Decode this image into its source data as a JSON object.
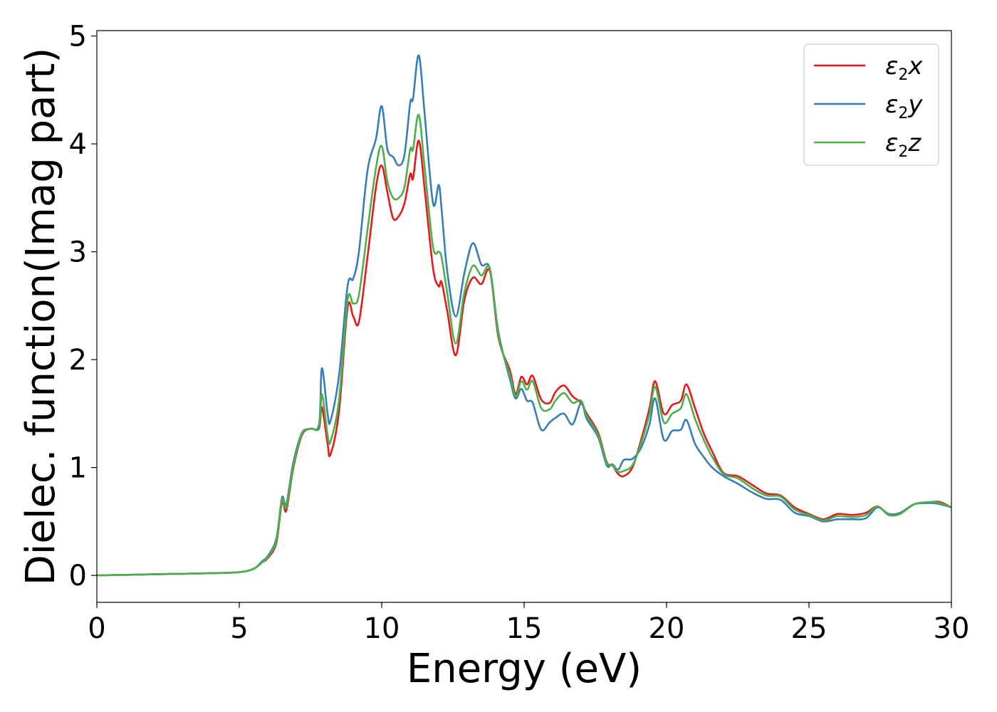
{
  "chart_data": {
    "type": "line",
    "xlabel": "Energy (eV)",
    "ylabel": "Dielec. function(Imag part)",
    "xlim": [
      0,
      30
    ],
    "ylim": [
      -0.25,
      5.05
    ],
    "xticks": [
      0,
      5,
      10,
      15,
      20,
      25,
      30
    ],
    "yticks": [
      0,
      1,
      2,
      3,
      4,
      5
    ],
    "grid": false,
    "legend_position": "top-right",
    "series": [
      {
        "name": "ε2x",
        "legend": {
          "base": "ε",
          "sub": "2",
          "suffix": "x"
        },
        "color": "#e41a1c",
        "points": [
          [
            0,
            0.0
          ],
          [
            2,
            0.01
          ],
          [
            4,
            0.02
          ],
          [
            5,
            0.03
          ],
          [
            5.5,
            0.06
          ],
          [
            5.8,
            0.12
          ],
          [
            6.0,
            0.16
          ],
          [
            6.3,
            0.3
          ],
          [
            6.5,
            0.68
          ],
          [
            6.65,
            0.6
          ],
          [
            6.9,
            1.0
          ],
          [
            7.2,
            1.3
          ],
          [
            7.5,
            1.36
          ],
          [
            7.8,
            1.36
          ],
          [
            7.9,
            1.56
          ],
          [
            8.1,
            1.22
          ],
          [
            8.2,
            1.12
          ],
          [
            8.5,
            1.52
          ],
          [
            8.8,
            2.48
          ],
          [
            9.0,
            2.4
          ],
          [
            9.2,
            2.35
          ],
          [
            9.5,
            2.95
          ],
          [
            9.8,
            3.6
          ],
          [
            10.0,
            3.8
          ],
          [
            10.2,
            3.55
          ],
          [
            10.4,
            3.31
          ],
          [
            10.6,
            3.33
          ],
          [
            10.8,
            3.45
          ],
          [
            11.0,
            3.72
          ],
          [
            11.1,
            3.68
          ],
          [
            11.3,
            4.03
          ],
          [
            11.5,
            3.6
          ],
          [
            11.8,
            2.85
          ],
          [
            12.0,
            2.68
          ],
          [
            12.1,
            2.72
          ],
          [
            12.3,
            2.45
          ],
          [
            12.6,
            2.04
          ],
          [
            12.9,
            2.55
          ],
          [
            13.2,
            2.76
          ],
          [
            13.5,
            2.7
          ],
          [
            13.8,
            2.82
          ],
          [
            14.1,
            2.2
          ],
          [
            14.5,
            1.9
          ],
          [
            14.7,
            1.68
          ],
          [
            14.9,
            1.84
          ],
          [
            15.1,
            1.77
          ],
          [
            15.3,
            1.85
          ],
          [
            15.6,
            1.63
          ],
          [
            15.9,
            1.6
          ],
          [
            16.1,
            1.7
          ],
          [
            16.4,
            1.76
          ],
          [
            16.7,
            1.66
          ],
          [
            17.0,
            1.6
          ],
          [
            17.2,
            1.5
          ],
          [
            17.6,
            1.32
          ],
          [
            17.9,
            1.05
          ],
          [
            18.1,
            1.02
          ],
          [
            18.3,
            0.94
          ],
          [
            18.5,
            0.92
          ],
          [
            18.8,
            1.0
          ],
          [
            19.1,
            1.25
          ],
          [
            19.4,
            1.55
          ],
          [
            19.6,
            1.8
          ],
          [
            19.9,
            1.5
          ],
          [
            20.2,
            1.58
          ],
          [
            20.5,
            1.62
          ],
          [
            20.7,
            1.77
          ],
          [
            21.0,
            1.55
          ],
          [
            21.3,
            1.32
          ],
          [
            21.6,
            1.15
          ],
          [
            22.0,
            0.95
          ],
          [
            22.5,
            0.92
          ],
          [
            23.0,
            0.84
          ],
          [
            23.5,
            0.76
          ],
          [
            24.0,
            0.74
          ],
          [
            24.5,
            0.63
          ],
          [
            25.0,
            0.57
          ],
          [
            25.5,
            0.52
          ],
          [
            26.0,
            0.57
          ],
          [
            26.5,
            0.56
          ],
          [
            27.0,
            0.58
          ],
          [
            27.4,
            0.64
          ],
          [
            27.8,
            0.56
          ],
          [
            28.2,
            0.57
          ],
          [
            28.7,
            0.66
          ],
          [
            29.3,
            0.68
          ],
          [
            29.6,
            0.68
          ],
          [
            30.0,
            0.63
          ]
        ]
      },
      {
        "name": "ε2y",
        "legend": {
          "base": "ε",
          "sub": "2",
          "suffix": "y"
        },
        "color": "#377eb8",
        "points": [
          [
            0,
            0.0
          ],
          [
            2,
            0.01
          ],
          [
            4,
            0.02
          ],
          [
            5,
            0.03
          ],
          [
            5.5,
            0.06
          ],
          [
            5.8,
            0.13
          ],
          [
            6.0,
            0.18
          ],
          [
            6.3,
            0.34
          ],
          [
            6.5,
            0.72
          ],
          [
            6.65,
            0.66
          ],
          [
            6.9,
            1.05
          ],
          [
            7.2,
            1.32
          ],
          [
            7.5,
            1.36
          ],
          [
            7.8,
            1.4
          ],
          [
            7.9,
            1.92
          ],
          [
            8.1,
            1.5
          ],
          [
            8.2,
            1.43
          ],
          [
            8.5,
            1.85
          ],
          [
            8.8,
            2.68
          ],
          [
            9.0,
            2.75
          ],
          [
            9.2,
            3.0
          ],
          [
            9.5,
            3.75
          ],
          [
            9.8,
            4.05
          ],
          [
            10.0,
            4.35
          ],
          [
            10.2,
            3.95
          ],
          [
            10.4,
            3.88
          ],
          [
            10.6,
            3.8
          ],
          [
            10.8,
            3.9
          ],
          [
            11.0,
            4.38
          ],
          [
            11.1,
            4.42
          ],
          [
            11.3,
            4.82
          ],
          [
            11.5,
            4.3
          ],
          [
            11.8,
            3.45
          ],
          [
            12.0,
            3.62
          ],
          [
            12.1,
            3.4
          ],
          [
            12.3,
            2.82
          ],
          [
            12.6,
            2.4
          ],
          [
            12.9,
            2.8
          ],
          [
            13.2,
            3.08
          ],
          [
            13.5,
            2.88
          ],
          [
            13.8,
            2.84
          ],
          [
            14.1,
            2.25
          ],
          [
            14.5,
            1.82
          ],
          [
            14.7,
            1.64
          ],
          [
            14.9,
            1.73
          ],
          [
            15.1,
            1.62
          ],
          [
            15.3,
            1.6
          ],
          [
            15.6,
            1.35
          ],
          [
            15.9,
            1.42
          ],
          [
            16.1,
            1.46
          ],
          [
            16.4,
            1.5
          ],
          [
            16.7,
            1.4
          ],
          [
            17.0,
            1.6
          ],
          [
            17.2,
            1.45
          ],
          [
            17.6,
            1.28
          ],
          [
            17.9,
            1.02
          ],
          [
            18.1,
            1.03
          ],
          [
            18.3,
            0.98
          ],
          [
            18.5,
            1.07
          ],
          [
            18.8,
            1.08
          ],
          [
            19.1,
            1.18
          ],
          [
            19.4,
            1.4
          ],
          [
            19.6,
            1.64
          ],
          [
            19.9,
            1.26
          ],
          [
            20.2,
            1.34
          ],
          [
            20.5,
            1.35
          ],
          [
            20.7,
            1.44
          ],
          [
            21.0,
            1.22
          ],
          [
            21.3,
            1.1
          ],
          [
            21.6,
            1.0
          ],
          [
            22.0,
            0.92
          ],
          [
            22.5,
            0.85
          ],
          [
            23.0,
            0.77
          ],
          [
            23.5,
            0.71
          ],
          [
            24.0,
            0.7
          ],
          [
            24.5,
            0.58
          ],
          [
            25.0,
            0.55
          ],
          [
            25.5,
            0.5
          ],
          [
            26.0,
            0.52
          ],
          [
            26.5,
            0.52
          ],
          [
            27.0,
            0.53
          ],
          [
            27.4,
            0.63
          ],
          [
            27.8,
            0.57
          ],
          [
            28.2,
            0.58
          ],
          [
            28.7,
            0.66
          ],
          [
            29.3,
            0.67
          ],
          [
            29.6,
            0.66
          ],
          [
            30.0,
            0.63
          ]
        ]
      },
      {
        "name": "ε2z",
        "legend": {
          "base": "ε",
          "sub": "2",
          "suffix": "z"
        },
        "color": "#4daf4a",
        "points": [
          [
            0,
            0.0
          ],
          [
            2,
            0.01
          ],
          [
            4,
            0.02
          ],
          [
            5,
            0.03
          ],
          [
            5.5,
            0.06
          ],
          [
            5.8,
            0.12
          ],
          [
            6.0,
            0.17
          ],
          [
            6.3,
            0.32
          ],
          [
            6.5,
            0.7
          ],
          [
            6.65,
            0.63
          ],
          [
            6.9,
            1.02
          ],
          [
            7.2,
            1.31
          ],
          [
            7.5,
            1.36
          ],
          [
            7.8,
            1.37
          ],
          [
            7.9,
            1.68
          ],
          [
            8.1,
            1.3
          ],
          [
            8.2,
            1.24
          ],
          [
            8.5,
            1.62
          ],
          [
            8.8,
            2.55
          ],
          [
            9.0,
            2.52
          ],
          [
            9.2,
            2.6
          ],
          [
            9.5,
            3.2
          ],
          [
            9.8,
            3.78
          ],
          [
            10.0,
            3.98
          ],
          [
            10.2,
            3.65
          ],
          [
            10.4,
            3.5
          ],
          [
            10.6,
            3.5
          ],
          [
            10.8,
            3.6
          ],
          [
            11.0,
            3.95
          ],
          [
            11.1,
            3.95
          ],
          [
            11.3,
            4.27
          ],
          [
            11.5,
            3.8
          ],
          [
            11.8,
            3.05
          ],
          [
            12.0,
            3.0
          ],
          [
            12.1,
            2.95
          ],
          [
            12.3,
            2.62
          ],
          [
            12.6,
            2.15
          ],
          [
            12.9,
            2.62
          ],
          [
            13.2,
            2.87
          ],
          [
            13.5,
            2.78
          ],
          [
            13.8,
            2.84
          ],
          [
            14.1,
            2.22
          ],
          [
            14.5,
            1.86
          ],
          [
            14.7,
            1.66
          ],
          [
            14.9,
            1.8
          ],
          [
            15.1,
            1.72
          ],
          [
            15.3,
            1.8
          ],
          [
            15.6,
            1.55
          ],
          [
            15.9,
            1.54
          ],
          [
            16.1,
            1.62
          ],
          [
            16.4,
            1.69
          ],
          [
            16.7,
            1.6
          ],
          [
            17.0,
            1.62
          ],
          [
            17.2,
            1.48
          ],
          [
            17.6,
            1.3
          ],
          [
            17.9,
            1.04
          ],
          [
            18.1,
            1.02
          ],
          [
            18.3,
            0.96
          ],
          [
            18.5,
            0.97
          ],
          [
            18.8,
            1.02
          ],
          [
            19.1,
            1.22
          ],
          [
            19.4,
            1.5
          ],
          [
            19.6,
            1.75
          ],
          [
            19.9,
            1.42
          ],
          [
            20.2,
            1.5
          ],
          [
            20.5,
            1.55
          ],
          [
            20.7,
            1.68
          ],
          [
            21.0,
            1.45
          ],
          [
            21.3,
            1.26
          ],
          [
            21.6,
            1.1
          ],
          [
            22.0,
            0.94
          ],
          [
            22.5,
            0.9
          ],
          [
            23.0,
            0.81
          ],
          [
            23.5,
            0.74
          ],
          [
            24.0,
            0.73
          ],
          [
            24.5,
            0.61
          ],
          [
            25.0,
            0.56
          ],
          [
            25.5,
            0.51
          ],
          [
            26.0,
            0.55
          ],
          [
            26.5,
            0.54
          ],
          [
            27.0,
            0.56
          ],
          [
            27.4,
            0.64
          ],
          [
            27.8,
            0.56
          ],
          [
            28.2,
            0.57
          ],
          [
            28.7,
            0.66
          ],
          [
            29.3,
            0.68
          ],
          [
            29.6,
            0.67
          ],
          [
            30.0,
            0.63
          ]
        ]
      }
    ]
  }
}
